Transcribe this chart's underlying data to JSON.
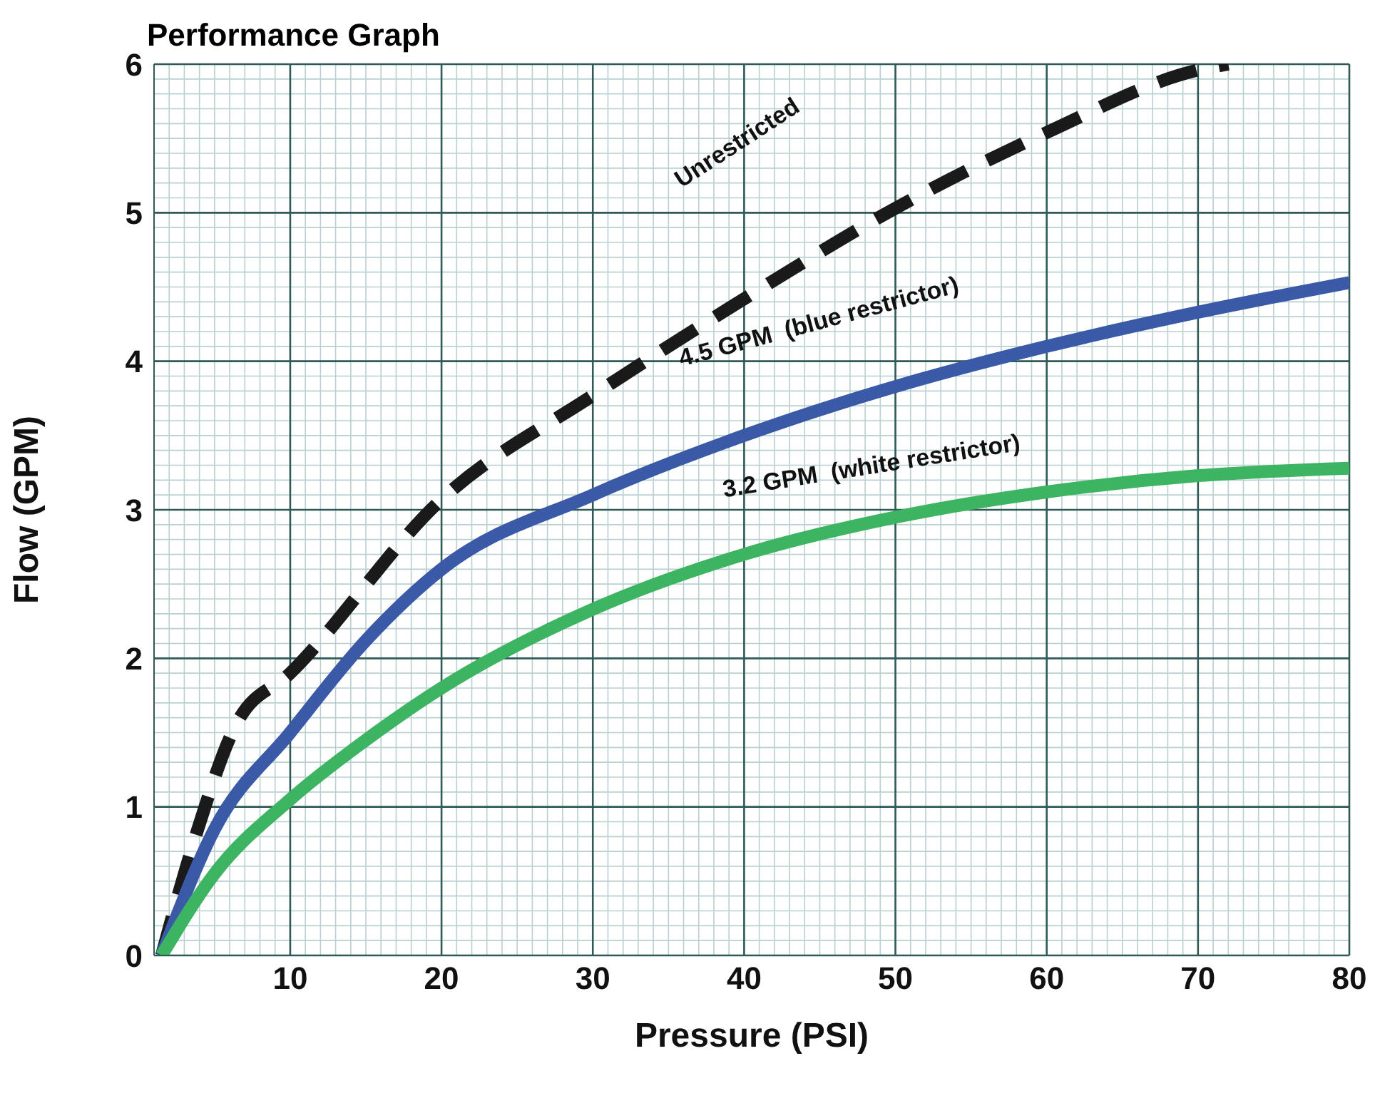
{
  "chart_data": {
    "type": "line",
    "title": "Performance Graph",
    "xlabel": "Pressure (PSI)",
    "ylabel": "Flow (GPM)",
    "xlim": [
      1,
      80
    ],
    "ylim": [
      0,
      6
    ],
    "xticks": [
      10,
      20,
      30,
      40,
      50,
      60,
      70,
      80
    ],
    "yticks": [
      0,
      1,
      2,
      3,
      4,
      5,
      6
    ],
    "grid": true,
    "legend": false,
    "marker": "none",
    "series": [
      {
        "name": "Unrestricted",
        "color": "#1a1a1a",
        "line_style": "dashed",
        "x": [
          1.5,
          3.8,
          6.5,
          10,
          20,
          30,
          40,
          50,
          60,
          70,
          72
        ],
        "values": [
          0,
          0.82,
          1.57,
          1.9,
          3.07,
          3.77,
          4.42,
          5.03,
          5.54,
          5.96,
          6.0
        ]
      },
      {
        "name": "4.5 GPM  (blue restrictor)",
        "color": "#3a5aa8",
        "line_style": "solid",
        "x": [
          1.5,
          5,
          10,
          15,
          20,
          30,
          40,
          50,
          60,
          70,
          80
        ],
        "values": [
          0,
          0.85,
          1.5,
          2.12,
          2.6,
          3.1,
          3.5,
          3.83,
          4.1,
          4.33,
          4.53
        ]
      },
      {
        "name": "3.2 GPM  (white restrictor)",
        "color": "#3db462",
        "line_style": "solid",
        "x": [
          1.5,
          5,
          10,
          15,
          20,
          30,
          40,
          50,
          60,
          70,
          80
        ],
        "values": [
          0,
          0.55,
          1.05,
          1.45,
          1.8,
          2.33,
          2.7,
          2.95,
          3.12,
          3.23,
          3.28
        ]
      }
    ]
  }
}
